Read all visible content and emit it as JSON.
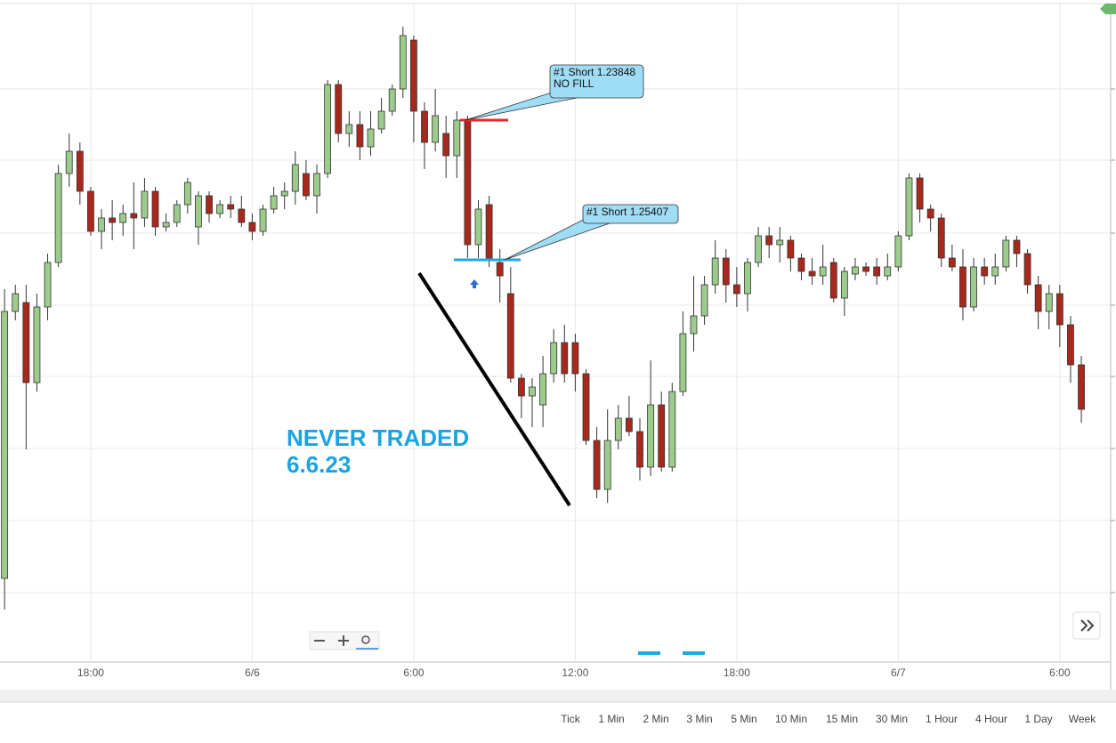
{
  "chart_data": {
    "type": "candlestick",
    "x": [
      -9.2,
      -8.8,
      -8.4,
      -8.0,
      -7.6,
      -7.2,
      -6.8,
      -6.4,
      -6.0,
      -5.6,
      -5.2,
      -4.8,
      -4.4,
      -4.0,
      -3.6,
      -3.2,
      -2.8,
      -2.4,
      -2.0,
      -1.6,
      -1.2,
      -0.8,
      -0.4,
      0.0,
      0.4,
      0.8,
      1.2,
      1.6,
      2.0,
      2.4,
      2.8,
      3.2,
      3.6,
      4.0,
      4.4,
      4.8,
      5.2,
      5.6,
      6.0,
      6.4,
      6.8,
      7.2,
      7.6,
      8.0,
      8.4,
      8.8,
      9.2,
      9.6,
      10.0,
      10.4,
      10.8,
      11.2,
      11.6,
      12.0,
      12.4,
      12.8,
      13.2,
      13.6,
      14.0,
      14.4,
      14.8,
      15.2,
      15.6,
      16.0,
      16.4,
      16.8,
      17.2,
      17.6,
      18.0,
      18.4,
      18.8,
      19.2,
      19.6,
      20.0,
      20.4,
      20.8,
      21.2,
      21.6,
      22.0,
      22.4,
      22.8,
      23.2,
      23.6,
      24.0,
      24.4,
      24.8,
      25.2,
      25.6,
      26.0,
      26.4,
      26.8,
      27.2,
      27.6,
      28.0,
      28.4,
      28.8,
      29.2,
      29.6,
      30.0,
      30.4,
      30.8
    ],
    "open": [
      95,
      395,
      405,
      315,
      400,
      450,
      550,
      575,
      530,
      485,
      500,
      495,
      505,
      500,
      530,
      490,
      495,
      515,
      490,
      525,
      505,
      515,
      510,
      495,
      485,
      510,
      525,
      530,
      550,
      525,
      550,
      650,
      595,
      605,
      580,
      600,
      620,
      645,
      700,
      620,
      585,
      595,
      570,
      610,
      470,
      515,
      450,
      415,
      320,
      300,
      290,
      325,
      360,
      360,
      325,
      250,
      195,
      250,
      275,
      260,
      220,
      290,
      220,
      305,
      370,
      390,
      425,
      455,
      425,
      415,
      450,
      480,
      470,
      475,
      455,
      440,
      435,
      450,
      410,
      437,
      445,
      445,
      435,
      445,
      480,
      545,
      510,
      500,
      455,
      445,
      400,
      445,
      435,
      445,
      475,
      460,
      425,
      395,
      415,
      380,
      335
    ],
    "high": [
      420,
      425,
      425,
      415,
      460,
      560,
      595,
      585,
      535,
      510,
      520,
      515,
      540,
      545,
      535,
      505,
      520,
      545,
      530,
      530,
      520,
      525,
      525,
      505,
      515,
      535,
      540,
      575,
      565,
      560,
      655,
      655,
      620,
      620,
      620,
      635,
      650,
      715,
      705,
      630,
      645,
      615,
      620,
      615,
      520,
      525,
      465,
      445,
      325,
      320,
      345,
      375,
      380,
      370,
      330,
      265,
      285,
      290,
      300,
      275,
      340,
      305,
      315,
      395,
      435,
      435,
      475,
      465,
      445,
      455,
      490,
      490,
      490,
      480,
      460,
      455,
      470,
      455,
      445,
      455,
      450,
      455,
      460,
      485,
      550,
      550,
      515,
      505,
      470,
      465,
      455,
      455,
      460,
      480,
      480,
      465,
      435,
      425,
      425,
      390,
      345
    ],
    "low": [
      60,
      385,
      240,
      305,
      385,
      445,
      535,
      515,
      480,
      465,
      475,
      480,
      465,
      490,
      480,
      485,
      490,
      505,
      470,
      495,
      500,
      500,
      490,
      475,
      480,
      505,
      510,
      515,
      520,
      505,
      545,
      585,
      580,
      565,
      570,
      595,
      615,
      635,
      585,
      555,
      575,
      545,
      545,
      455,
      455,
      445,
      405,
      315,
      275,
      265,
      265,
      315,
      315,
      305,
      245,
      185,
      180,
      240,
      255,
      205,
      210,
      215,
      215,
      300,
      350,
      380,
      415,
      405,
      400,
      395,
      445,
      455,
      450,
      440,
      430,
      425,
      425,
      405,
      390,
      430,
      435,
      425,
      430,
      440,
      475,
      495,
      485,
      445,
      440,
      385,
      395,
      425,
      425,
      440,
      445,
      415,
      375,
      375,
      355,
      315,
      270
    ],
    "close": [
      395,
      415,
      315,
      400,
      450,
      550,
      575,
      530,
      485,
      500,
      495,
      505,
      500,
      530,
      490,
      495,
      515,
      540,
      525,
      505,
      515,
      510,
      495,
      485,
      510,
      525,
      530,
      560,
      525,
      550,
      650,
      595,
      605,
      580,
      600,
      620,
      645,
      705,
      620,
      585,
      615,
      570,
      610,
      470,
      510,
      455,
      435,
      320,
      300,
      310,
      325,
      360,
      325,
      325,
      250,
      195,
      250,
      275,
      260,
      220,
      290,
      220,
      305,
      370,
      390,
      425,
      455,
      425,
      415,
      450,
      480,
      470,
      475,
      455,
      440,
      435,
      445,
      410,
      440,
      445,
      440,
      435,
      445,
      480,
      545,
      510,
      500,
      455,
      445,
      400,
      445,
      435,
      445,
      475,
      460,
      425,
      395,
      415,
      380,
      335,
      285
    ],
    "up_color": "#9ccc8c",
    "down_color": "#a8281c",
    "xlim": [
      -9.37,
      31.79
    ],
    "ylim": [
      0,
      740
    ],
    "xticks": [
      {
        "value": -6,
        "label": "18:00"
      },
      {
        "value": 0,
        "label": "6/6"
      },
      {
        "value": 6,
        "label": "6:00"
      },
      {
        "value": 12,
        "label": "12:00"
      },
      {
        "value": 18,
        "label": "18:00"
      },
      {
        "value": 24,
        "label": "6/7"
      },
      {
        "value": 30,
        "label": "6:00"
      }
    ],
    "ygrid": [
      645,
      565,
      483,
      402,
      322,
      241,
      160,
      79
    ],
    "orders": [
      {
        "label": "#1 Short 1.23848",
        "note": "NO FILL",
        "level": 610,
        "color": "#e8282c"
      },
      {
        "label": "#1 Short 1.25407",
        "level": 453,
        "color": "#1ea8e0"
      }
    ],
    "annotations": [
      "NEVER TRADED",
      "6.6.23"
    ]
  },
  "toolbar": {
    "intervals": [
      "Tick",
      "1 Min",
      "2 Min",
      "3 Min",
      "5 Min",
      "10 Min",
      "15 Min",
      "30 Min",
      "1 Hour",
      "4 Hour",
      "1 Day",
      "Week"
    ]
  }
}
